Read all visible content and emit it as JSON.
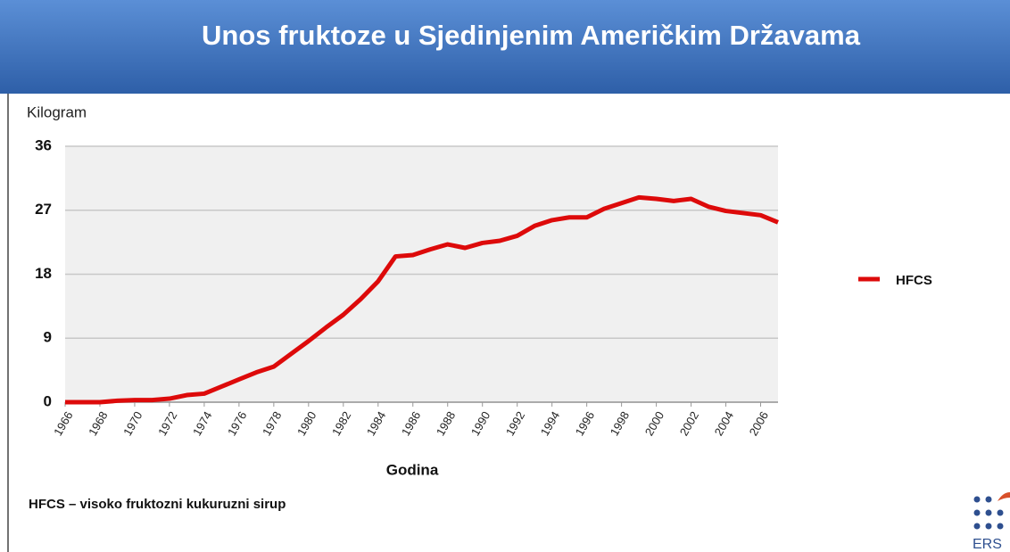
{
  "chart_data": {
    "type": "line",
    "title": "Unos fruktoze u Sjedinjenim Američkim Državama",
    "y_label": "Kilogram",
    "x_label": "Godina",
    "x": [
      1966,
      1967,
      1968,
      1969,
      1970,
      1971,
      1972,
      1973,
      1974,
      1975,
      1976,
      1977,
      1978,
      1979,
      1980,
      1981,
      1982,
      1983,
      1984,
      1985,
      1986,
      1987,
      1988,
      1989,
      1990,
      1991,
      1992,
      1993,
      1994,
      1995,
      1996,
      1997,
      1998,
      1999,
      2000,
      2001,
      2002,
      2003,
      2004,
      2005,
      2006,
      2007
    ],
    "series": [
      {
        "name": "HFCS",
        "color": "#dd0a0a",
        "values": [
          0,
          0,
          0,
          0.2,
          0.3,
          0.3,
          0.5,
          1.0,
          1.2,
          2.2,
          3.2,
          4.2,
          5.0,
          6.8,
          8.6,
          10.5,
          12.3,
          14.5,
          17.0,
          20.5,
          20.7,
          21.5,
          22.2,
          21.7,
          22.4,
          22.7,
          23.4,
          24.8,
          25.6,
          26.0,
          26.0,
          27.2,
          28.0,
          28.8,
          28.6,
          28.3,
          28.6,
          27.5,
          26.9,
          26.6,
          26.3,
          25.3
        ]
      }
    ],
    "xlim": [
      1966,
      2007
    ],
    "xticks": [
      1966,
      1968,
      1970,
      1972,
      1974,
      1976,
      1978,
      1980,
      1982,
      1984,
      1986,
      1988,
      1990,
      1992,
      1994,
      1996,
      1998,
      2000,
      2002,
      2004,
      2006
    ],
    "ylim": [
      0,
      36
    ],
    "yticks": [
      0,
      9,
      18,
      27,
      36
    ],
    "grid": true,
    "legend": "right",
    "footnote": "HFCS – visoko fruktozni kukuruzni sirup",
    "logo_text": "ERS"
  }
}
